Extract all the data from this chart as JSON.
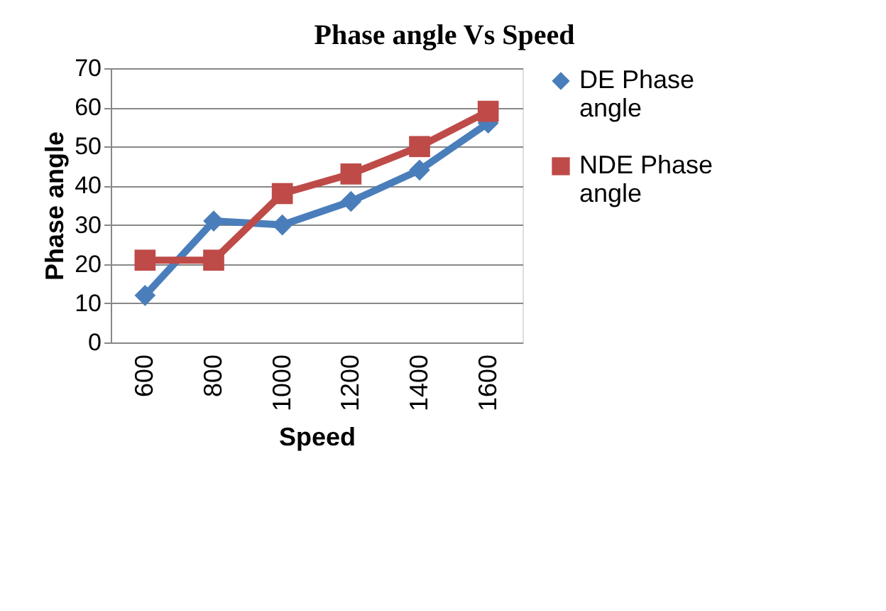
{
  "chart_data": {
    "type": "line",
    "title": "Phase angle Vs Speed",
    "xlabel": "Speed",
    "ylabel": "Phase angle",
    "categories": [
      "600",
      "800",
      "1000",
      "1200",
      "1400",
      "1600"
    ],
    "series": [
      {
        "name": "DE Phase angle",
        "color": "#4a7ebb",
        "marker": "diamond",
        "values": [
          12,
          31,
          30,
          36,
          44,
          56
        ]
      },
      {
        "name": "NDE Phase angle",
        "color": "#be4b48",
        "marker": "square",
        "values": [
          21,
          21,
          38,
          43,
          50,
          59
        ]
      }
    ],
    "ylim": [
      0,
      70
    ],
    "yticks": [
      0,
      10,
      20,
      30,
      40,
      50,
      60,
      70
    ],
    "grid": "y",
    "legend": "right"
  }
}
